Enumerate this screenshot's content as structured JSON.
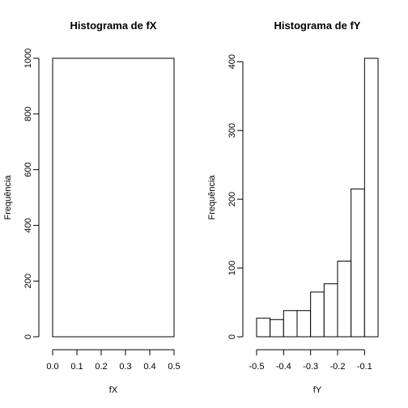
{
  "chart_data": [
    {
      "type": "bar",
      "title": "Histograma de fX",
      "xlabel": "fX",
      "ylabel": "Frequência",
      "xlim": [
        0.0,
        0.5
      ],
      "ylim": [
        0,
        1000
      ],
      "x_ticks": [
        0.0,
        0.1,
        0.2,
        0.3,
        0.4,
        0.5
      ],
      "x_tick_labels": [
        "0.0",
        "0.1",
        "0.2",
        "0.3",
        "0.4",
        "0.5"
      ],
      "y_ticks": [
        0,
        200,
        400,
        600,
        800,
        1000
      ],
      "y_tick_labels": [
        "0",
        "200",
        "400",
        "600",
        "800",
        "1000"
      ],
      "bins": [
        {
          "x0": 0.0,
          "x1": 0.5,
          "count": 1000
        }
      ]
    },
    {
      "type": "bar",
      "title": "Histograma de fY",
      "xlabel": "fY",
      "ylabel": "Frequência",
      "xlim": [
        -0.5,
        -0.05
      ],
      "ylim": [
        0,
        405
      ],
      "x_ticks": [
        -0.5,
        -0.4,
        -0.3,
        -0.2,
        -0.1
      ],
      "x_tick_labels": [
        "-0.5",
        "-0.4",
        "-0.3",
        "-0.2",
        "-0.1"
      ],
      "y_ticks": [
        0,
        100,
        200,
        300,
        400
      ],
      "y_tick_labels": [
        "0",
        "100",
        "200",
        "300",
        "400"
      ],
      "bins": [
        {
          "x0": -0.5,
          "x1": -0.45,
          "count": 27
        },
        {
          "x0": -0.45,
          "x1": -0.4,
          "count": 25
        },
        {
          "x0": -0.4,
          "x1": -0.35,
          "count": 38
        },
        {
          "x0": -0.35,
          "x1": -0.3,
          "count": 38
        },
        {
          "x0": -0.3,
          "x1": -0.25,
          "count": 65
        },
        {
          "x0": -0.25,
          "x1": -0.2,
          "count": 77
        },
        {
          "x0": -0.2,
          "x1": -0.15,
          "count": 110
        },
        {
          "x0": -0.15,
          "x1": -0.1,
          "count": 215
        },
        {
          "x0": -0.1,
          "x1": -0.05,
          "count": 405
        }
      ]
    }
  ]
}
